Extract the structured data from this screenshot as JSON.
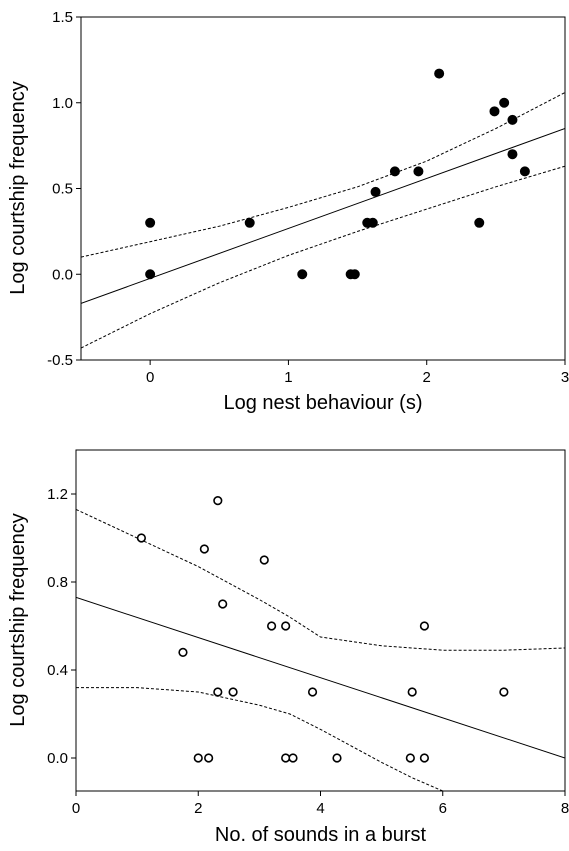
{
  "chart_data": [
    {
      "type": "scatter",
      "xlabel": "Log nest behaviour (s)",
      "ylabel": "Log courtship frequency",
      "xlim": [
        -0.5,
        3
      ],
      "ylim": [
        -0.5,
        1.5
      ],
      "xticks": [
        0,
        1,
        2,
        3
      ],
      "xtick_labels": [
        "0",
        "1",
        "2",
        "3"
      ],
      "yticks": [
        -0.5,
        0.0,
        0.5,
        1.0,
        1.5
      ],
      "ytick_labels": [
        "-0.5",
        "0.0",
        "0.5",
        "1.0",
        "1.5"
      ],
      "marker": "filled-circle",
      "points": [
        {
          "x": 0.0,
          "y": 0.3
        },
        {
          "x": 0.0,
          "y": 0.0
        },
        {
          "x": 0.72,
          "y": 0.3
        },
        {
          "x": 1.1,
          "y": 0.0
        },
        {
          "x": 1.45,
          "y": 0.0
        },
        {
          "x": 1.48,
          "y": 0.0
        },
        {
          "x": 1.57,
          "y": 0.3
        },
        {
          "x": 1.61,
          "y": 0.3
        },
        {
          "x": 1.63,
          "y": 0.48
        },
        {
          "x": 1.77,
          "y": 0.6
        },
        {
          "x": 1.94,
          "y": 0.6
        },
        {
          "x": 2.09,
          "y": 1.17
        },
        {
          "x": 2.38,
          "y": 0.3
        },
        {
          "x": 2.49,
          "y": 0.95
        },
        {
          "x": 2.56,
          "y": 1.0
        },
        {
          "x": 2.62,
          "y": 0.9
        },
        {
          "x": 2.62,
          "y": 0.7
        },
        {
          "x": 2.71,
          "y": 0.6
        }
      ],
      "fit_line": {
        "x": [
          -0.5,
          3.0
        ],
        "y": [
          -0.17,
          0.85
        ]
      },
      "ci_upper": {
        "x": [
          -0.5,
          0.0,
          0.5,
          1.0,
          1.5,
          2.0,
          2.5,
          3.0
        ],
        "y": [
          0.1,
          0.19,
          0.28,
          0.39,
          0.51,
          0.66,
          0.85,
          1.06
        ]
      },
      "ci_lower": {
        "x": [
          -0.5,
          0.0,
          0.5,
          1.0,
          1.5,
          2.0,
          2.5,
          3.0
        ],
        "y": [
          -0.43,
          -0.23,
          -0.05,
          0.11,
          0.25,
          0.38,
          0.51,
          0.63
        ]
      },
      "grid": false
    },
    {
      "type": "scatter",
      "xlabel": "No. of sounds in a burst",
      "ylabel": "Log courtship frequency",
      "xlim": [
        0,
        8
      ],
      "ylim": [
        -0.15,
        1.4
      ],
      "xticks": [
        0,
        2,
        4,
        6,
        8
      ],
      "xtick_labels": [
        "0",
        "2",
        "4",
        "6",
        "8"
      ],
      "yticks": [
        0.0,
        0.4,
        0.8,
        1.2
      ],
      "ytick_labels": [
        "0.0",
        "0.4",
        "0.8",
        "1.2"
      ],
      "marker": "open-circle",
      "points": [
        {
          "x": 1.07,
          "y": 1.0
        },
        {
          "x": 2.32,
          "y": 1.17
        },
        {
          "x": 2.1,
          "y": 0.95
        },
        {
          "x": 3.08,
          "y": 0.9
        },
        {
          "x": 2.4,
          "y": 0.7
        },
        {
          "x": 3.2,
          "y": 0.6
        },
        {
          "x": 3.43,
          "y": 0.6
        },
        {
          "x": 5.7,
          "y": 0.6
        },
        {
          "x": 1.75,
          "y": 0.48
        },
        {
          "x": 2.32,
          "y": 0.3
        },
        {
          "x": 2.57,
          "y": 0.3
        },
        {
          "x": 3.87,
          "y": 0.3
        },
        {
          "x": 5.5,
          "y": 0.3
        },
        {
          "x": 7.0,
          "y": 0.3
        },
        {
          "x": 2.0,
          "y": 0.0
        },
        {
          "x": 2.17,
          "y": 0.0
        },
        {
          "x": 3.43,
          "y": 0.0
        },
        {
          "x": 3.55,
          "y": 0.0
        },
        {
          "x": 4.27,
          "y": 0.0
        },
        {
          "x": 5.47,
          "y": 0.0
        },
        {
          "x": 5.7,
          "y": 0.0
        }
      ],
      "fit_line": {
        "x": [
          0.0,
          8.0
        ],
        "y": [
          0.73,
          0.0
        ]
      },
      "ci_upper": {
        "x": [
          0.0,
          1.0,
          2.0,
          3.0,
          3.5,
          4.0,
          5.0,
          6.0,
          7.0,
          8.0
        ],
        "y": [
          1.13,
          1.0,
          0.87,
          0.72,
          0.64,
          0.55,
          0.51,
          0.49,
          0.49,
          0.5
        ]
      },
      "ci_lower": {
        "x": [
          0.0,
          1.0,
          2.0,
          3.0,
          3.5,
          4.0,
          5.0,
          5.5,
          6.0,
          6.3
        ],
        "y": [
          0.32,
          0.32,
          0.3,
          0.24,
          0.2,
          0.13,
          -0.02,
          -0.09,
          -0.15,
          -0.15
        ]
      },
      "grid": false
    }
  ]
}
